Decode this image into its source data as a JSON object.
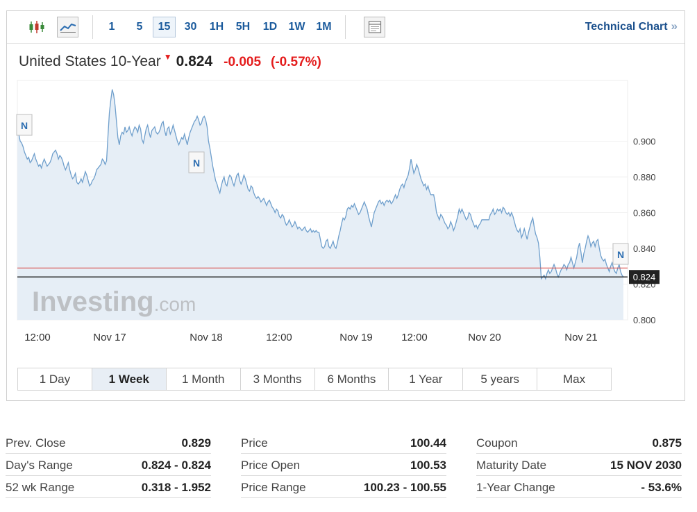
{
  "toolbar": {
    "icons": [
      "candlestick-icon",
      "area-chart-icon",
      "panel-icon"
    ],
    "intervals": [
      {
        "label": "1",
        "active": false
      },
      {
        "label": "5",
        "active": false
      },
      {
        "label": "15",
        "active": true
      },
      {
        "label": "30",
        "active": false
      },
      {
        "label": "1H",
        "active": false
      },
      {
        "label": "5H",
        "active": false
      },
      {
        "label": "1D",
        "active": false
      },
      {
        "label": "1W",
        "active": false
      },
      {
        "label": "1M",
        "active": false
      }
    ],
    "technical_chart_label": "Technical Chart",
    "technical_chart_chevron": "»"
  },
  "header": {
    "name": "United States 10-Year",
    "price": "0.824",
    "change": "-0.005",
    "change_pct": "(-0.57%)",
    "arrow": "▼"
  },
  "colors": {
    "line": "#6f9fcc",
    "fill": "#e6eef6",
    "prev_close_line": "#d9534f",
    "current_line": "#222222",
    "negative": "#e41c1c",
    "link": "#1a5a9c"
  },
  "chart_data": {
    "type": "area",
    "x_labels": [
      "12:00",
      "Nov 17",
      "Nov 18",
      "12:00",
      "Nov 19",
      "12:00",
      "Nov 20",
      "Nov 21"
    ],
    "y_ticks": [
      "0.900",
      "0.880",
      "0.860",
      "0.840",
      "0.820",
      "0.800"
    ],
    "y_tick_values": [
      0.9,
      0.88,
      0.86,
      0.84,
      0.82,
      0.8
    ],
    "ylim": [
      0.8,
      0.934
    ],
    "prev_close": 0.829,
    "current": 0.824,
    "current_label": "0.824",
    "watermark": "Investing.com",
    "news_markers": [
      {
        "label": "N",
        "x_index": 1
      },
      {
        "label": "N",
        "x_index": 50
      },
      {
        "label": "N",
        "x_index": 367
      }
    ],
    "values": [
      0.906,
      0.904,
      0.9,
      0.899,
      0.897,
      0.894,
      0.892,
      0.89,
      0.891,
      0.888,
      0.889,
      0.891,
      0.893,
      0.89,
      0.888,
      0.886,
      0.887,
      0.885,
      0.888,
      0.89,
      0.888,
      0.886,
      0.887,
      0.888,
      0.89,
      0.893,
      0.894,
      0.895,
      0.893,
      0.89,
      0.892,
      0.891,
      0.889,
      0.886,
      0.884,
      0.886,
      0.888,
      0.884,
      0.881,
      0.879,
      0.88,
      0.882,
      0.877,
      0.876,
      0.877,
      0.879,
      0.877,
      0.88,
      0.883,
      0.881,
      0.878,
      0.875,
      0.876,
      0.878,
      0.879,
      0.881,
      0.884,
      0.885,
      0.886,
      0.887,
      0.89,
      0.889,
      0.887,
      0.889,
      0.903,
      0.916,
      0.923,
      0.929,
      0.926,
      0.92,
      0.911,
      0.902,
      0.898,
      0.903,
      0.905,
      0.904,
      0.908,
      0.905,
      0.906,
      0.908,
      0.905,
      0.903,
      0.906,
      0.908,
      0.907,
      0.905,
      0.909,
      0.907,
      0.901,
      0.899,
      0.903,
      0.907,
      0.909,
      0.905,
      0.902,
      0.906,
      0.907,
      0.908,
      0.905,
      0.904,
      0.905,
      0.907,
      0.91,
      0.911,
      0.906,
      0.903,
      0.907,
      0.908,
      0.904,
      0.906,
      0.909,
      0.906,
      0.903,
      0.9,
      0.898,
      0.9,
      0.902,
      0.901,
      0.904,
      0.901,
      0.898,
      0.902,
      0.905,
      0.907,
      0.909,
      0.911,
      0.912,
      0.914,
      0.912,
      0.909,
      0.91,
      0.913,
      0.914,
      0.912,
      0.908,
      0.9,
      0.896,
      0.891,
      0.886,
      0.882,
      0.878,
      0.876,
      0.873,
      0.871,
      0.875,
      0.878,
      0.88,
      0.876,
      0.875,
      0.879,
      0.881,
      0.88,
      0.877,
      0.875,
      0.878,
      0.881,
      0.882,
      0.878,
      0.876,
      0.878,
      0.881,
      0.879,
      0.876,
      0.873,
      0.872,
      0.875,
      0.874,
      0.871,
      0.869,
      0.868,
      0.869,
      0.868,
      0.866,
      0.867,
      0.868,
      0.866,
      0.864,
      0.866,
      0.867,
      0.865,
      0.863,
      0.862,
      0.86,
      0.862,
      0.861,
      0.858,
      0.857,
      0.859,
      0.858,
      0.855,
      0.853,
      0.854,
      0.856,
      0.854,
      0.852,
      0.853,
      0.855,
      0.853,
      0.851,
      0.852,
      0.851,
      0.85,
      0.851,
      0.852,
      0.85,
      0.849,
      0.85,
      0.851,
      0.849,
      0.85,
      0.849,
      0.85,
      0.849,
      0.849,
      0.845,
      0.841,
      0.84,
      0.841,
      0.844,
      0.845,
      0.841,
      0.84,
      0.842,
      0.844,
      0.841,
      0.84,
      0.843,
      0.847,
      0.85,
      0.854,
      0.857,
      0.856,
      0.858,
      0.862,
      0.863,
      0.862,
      0.864,
      0.863,
      0.865,
      0.863,
      0.861,
      0.859,
      0.86,
      0.862,
      0.864,
      0.866,
      0.864,
      0.862,
      0.858,
      0.855,
      0.852,
      0.856,
      0.86,
      0.862,
      0.864,
      0.866,
      0.867,
      0.865,
      0.866,
      0.864,
      0.866,
      0.867,
      0.866,
      0.867,
      0.865,
      0.866,
      0.868,
      0.87,
      0.868,
      0.87,
      0.873,
      0.875,
      0.876,
      0.874,
      0.877,
      0.879,
      0.881,
      0.885,
      0.89,
      0.886,
      0.882,
      0.884,
      0.887,
      0.885,
      0.882,
      0.879,
      0.877,
      0.875,
      0.876,
      0.873,
      0.875,
      0.872,
      0.87,
      0.87,
      0.87,
      0.866,
      0.86,
      0.858,
      0.856,
      0.859,
      0.858,
      0.856,
      0.854,
      0.853,
      0.851,
      0.852,
      0.855,
      0.853,
      0.85,
      0.852,
      0.855,
      0.858,
      0.862,
      0.86,
      0.862,
      0.86,
      0.858,
      0.856,
      0.857,
      0.86,
      0.859,
      0.856,
      0.854,
      0.852,
      0.853,
      0.851,
      0.853,
      0.854,
      0.856,
      0.856,
      0.856,
      0.856,
      0.856,
      0.856,
      0.859,
      0.86,
      0.862,
      0.859,
      0.86,
      0.862,
      0.861,
      0.862,
      0.86,
      0.863,
      0.862,
      0.86,
      0.859,
      0.86,
      0.858,
      0.86,
      0.858,
      0.855,
      0.852,
      0.85,
      0.849,
      0.851,
      0.846,
      0.848,
      0.851,
      0.848,
      0.845,
      0.849,
      0.852,
      0.855,
      0.857,
      0.852,
      0.848,
      0.846,
      0.843,
      0.835,
      0.823,
      0.824,
      0.825,
      0.823,
      0.826,
      0.828,
      0.826,
      0.827,
      0.829,
      0.831,
      0.829,
      0.826,
      0.824,
      0.826,
      0.828,
      0.829,
      0.831,
      0.83,
      0.828,
      0.831,
      0.832,
      0.835,
      0.832,
      0.829,
      0.832,
      0.835,
      0.84,
      0.843,
      0.838,
      0.832,
      0.837,
      0.84,
      0.844,
      0.847,
      0.845,
      0.841,
      0.843,
      0.844,
      0.841,
      0.844,
      0.845,
      0.84,
      0.836,
      0.834,
      0.833,
      0.834,
      0.831,
      0.829,
      0.827,
      0.83,
      0.832,
      0.829,
      0.827,
      0.826,
      0.829,
      0.831,
      0.827,
      0.825,
      0.824
    ]
  },
  "ranges": [
    {
      "label": "1 Day",
      "active": false
    },
    {
      "label": "1 Week",
      "active": true
    },
    {
      "label": "1 Month",
      "active": false
    },
    {
      "label": "3 Months",
      "active": false
    },
    {
      "label": "6 Months",
      "active": false
    },
    {
      "label": "1 Year",
      "active": false
    },
    {
      "label": "5 years",
      "active": false
    },
    {
      "label": "Max",
      "active": false
    }
  ],
  "stats": {
    "columns": [
      [
        {
          "label": "Prev. Close",
          "value": "0.829"
        },
        {
          "label": "Day's Range",
          "value": "0.824 - 0.824"
        },
        {
          "label": "52 wk Range",
          "value": "0.318 - 1.952"
        }
      ],
      [
        {
          "label": "Price",
          "value": "100.44"
        },
        {
          "label": "Price Open",
          "value": "100.53"
        },
        {
          "label": "Price Range",
          "value": "100.23 - 100.55"
        }
      ],
      [
        {
          "label": "Coupon",
          "value": "0.875"
        },
        {
          "label": "Maturity Date",
          "value": "15 NOV 2030"
        },
        {
          "label": "1-Year Change",
          "value": "- 53.6%"
        }
      ]
    ]
  }
}
